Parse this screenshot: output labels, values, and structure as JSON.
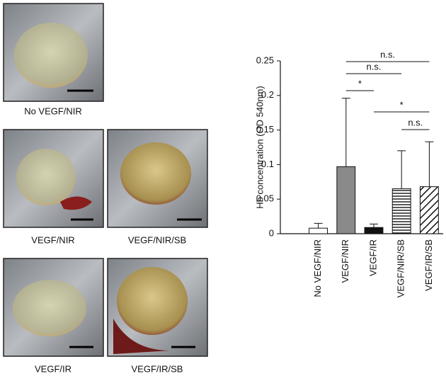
{
  "panels": [
    {
      "caption": "No VEGF/NIR"
    },
    {
      "caption": "VEGF/NIR"
    },
    {
      "caption": "VEGF/NIR/SB"
    },
    {
      "caption": "VEGF/IR"
    },
    {
      "caption": "VEGF/IR/SB"
    }
  ],
  "chart_data": {
    "type": "bar",
    "y_label": "Hb concentration (OD 540nm)",
    "categories": [
      "No VEGF/NIR",
      "VEGF/NIR",
      "VEGF/IR",
      "VEGF/NIR/SB",
      "VEGF/IR/SB"
    ],
    "values": [
      0.008,
      0.097,
      0.009,
      0.065,
      0.068
    ],
    "errors": [
      0.007,
      0.099,
      0.005,
      0.055,
      0.065
    ],
    "colors": [
      "#ffffff",
      "#8a8a8a",
      "#111111",
      "#ffffff",
      "#ffffff"
    ],
    "hatch": [
      null,
      null,
      null,
      "horizontal",
      "diagonal"
    ],
    "ylim": [
      0,
      0.25
    ],
    "yticks": [
      0,
      0.05,
      0.1,
      0.15,
      0.2,
      0.25
    ],
    "annotations": [
      {
        "text": "n.s.",
        "from": 1,
        "to": 4
      },
      {
        "text": "n.s.",
        "from": 1,
        "to": 3
      },
      {
        "text": "*",
        "from": 1,
        "to": 2
      },
      {
        "text": "*",
        "from": 2,
        "to": 4
      },
      {
        "text": "n.s.",
        "from": 3,
        "to": 4
      }
    ]
  }
}
